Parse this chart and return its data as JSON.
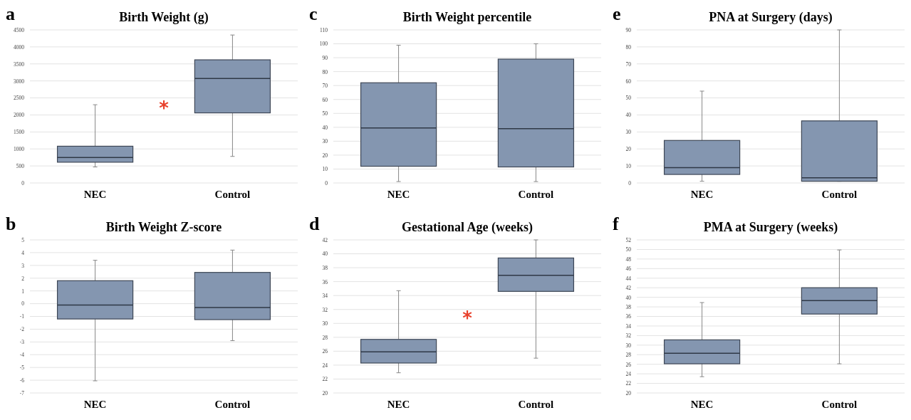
{
  "chart_data": [
    {
      "type": "box",
      "title": "Birth Weight (g)",
      "categories": [
        "NEC",
        "Control"
      ],
      "color": "#8496b0",
      "ylim": [
        0,
        4500
      ],
      "yticks": [
        0,
        500,
        1000,
        1500,
        2000,
        2500,
        3000,
        3500,
        4000,
        4500
      ],
      "grid": "y",
      "annotations": [
        "a",
        "*"
      ],
      "boxes": [
        {
          "low": 470,
          "q1": 610,
          "median": 750,
          "q3": 1080,
          "high": 2300
        },
        {
          "low": 780,
          "q1": 2060,
          "median": 3070,
          "q3": 3620,
          "high": 4350
        }
      ]
    },
    {
      "type": "box",
      "title": "Birth Weight Z-score",
      "categories": [
        "NEC",
        "Control"
      ],
      "color": "#8496b0",
      "ylim": [
        -7,
        5
      ],
      "yticks": [
        -7,
        -6,
        -5,
        -4,
        -3,
        -2,
        -1,
        0,
        1,
        2,
        3,
        4,
        5
      ],
      "grid": "y",
      "annotations": [
        "b"
      ],
      "boxes": [
        {
          "low": -6.05,
          "q1": -1.2,
          "median": -0.1,
          "q3": 1.8,
          "high": 3.4
        },
        {
          "low": -2.9,
          "q1": -1.25,
          "median": -0.3,
          "q3": 2.45,
          "high": 4.2
        }
      ]
    },
    {
      "type": "box",
      "title": "Birth Weight percentile",
      "categories": [
        "NEC",
        "Control"
      ],
      "color": "#8496b0",
      "ylim": [
        0,
        110
      ],
      "yticks": [
        0,
        10,
        20,
        30,
        40,
        50,
        60,
        70,
        80,
        90,
        100,
        110
      ],
      "grid": "y",
      "annotations": [
        "c"
      ],
      "boxes": [
        {
          "low": 1,
          "q1": 12,
          "median": 39.5,
          "q3": 72,
          "high": 99
        },
        {
          "low": 1,
          "q1": 11.5,
          "median": 39,
          "q3": 89,
          "high": 100
        }
      ]
    },
    {
      "type": "box",
      "title": "Gestational Age (weeks)",
      "categories": [
        "NEC",
        "Control"
      ],
      "color": "#8496b0",
      "ylim": [
        20,
        42
      ],
      "yticks": [
        20,
        22,
        24,
        26,
        28,
        30,
        32,
        34,
        36,
        38,
        40,
        42
      ],
      "grid": "y",
      "annotations": [
        "d",
        "*"
      ],
      "boxes": [
        {
          "low": 22.9,
          "q1": 24.3,
          "median": 25.9,
          "q3": 27.7,
          "high": 34.7
        },
        {
          "low": 25,
          "q1": 34.6,
          "median": 36.9,
          "q3": 39.4,
          "high": 42
        }
      ]
    },
    {
      "type": "box",
      "title": "PNA at Surgery (days)",
      "categories": [
        "NEC",
        "Control"
      ],
      "color": "#8496b0",
      "ylim": [
        0,
        90
      ],
      "yticks": [
        0,
        10,
        20,
        30,
        40,
        50,
        60,
        70,
        80,
        90
      ],
      "grid": "y",
      "annotations": [
        "e"
      ],
      "boxes": [
        {
          "low": 1,
          "q1": 5,
          "median": 9,
          "q3": 25,
          "high": 54
        },
        {
          "low": 1,
          "q1": 1,
          "median": 3,
          "q3": 36.5,
          "high": 90
        }
      ]
    },
    {
      "type": "box",
      "title": "PMA at Surgery (weeks)",
      "categories": [
        "NEC",
        "Control"
      ],
      "color": "#8496b0",
      "ylim": [
        20,
        52
      ],
      "yticks": [
        20,
        22,
        24,
        26,
        28,
        30,
        32,
        34,
        36,
        38,
        40,
        42,
        44,
        46,
        48,
        50,
        52
      ],
      "grid": "y",
      "annotations": [
        "f"
      ],
      "boxes": [
        {
          "low": 23.4,
          "q1": 26.1,
          "median": 28.3,
          "q3": 31.1,
          "high": 38.9
        },
        {
          "low": 26.1,
          "q1": 36.5,
          "median": 39.3,
          "q3": 42,
          "high": 49.9
        }
      ]
    }
  ]
}
